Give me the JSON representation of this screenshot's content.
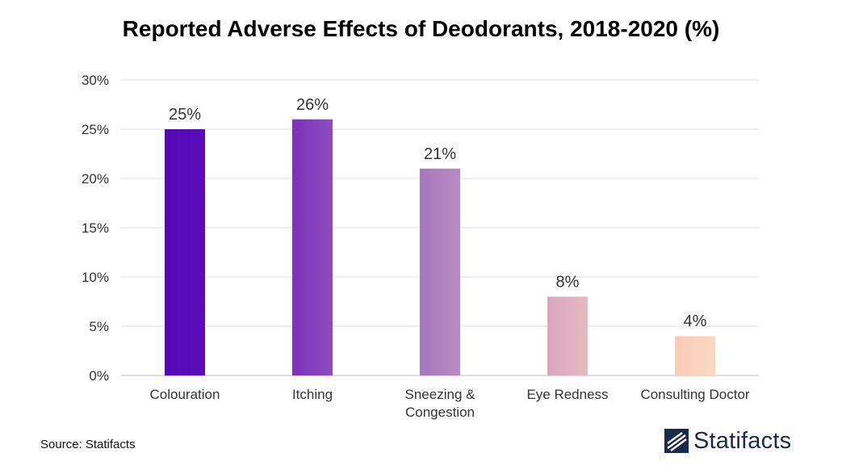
{
  "chart_data": {
    "type": "bar",
    "title": "Reported Adverse Effects of Deodorants, 2018-2020 (%)",
    "categories": [
      "Colouration",
      "Itching",
      "Sneezing & Congestion",
      "Eye Redness",
      "Consulting Doctor"
    ],
    "category_lines": [
      [
        "Colouration"
      ],
      [
        "Itching"
      ],
      [
        "Sneezing &",
        "Congestion"
      ],
      [
        "Eye Redness"
      ],
      [
        "Consulting Doctor"
      ]
    ],
    "values": [
      25,
      26,
      21,
      8,
      4
    ],
    "value_labels": [
      "25%",
      "26%",
      "21%",
      "8%",
      "4%"
    ],
    "bar_colors": [
      [
        "#5608b4",
        "#5a0dba"
      ],
      [
        "#7c32b6",
        "#8c4cc0"
      ],
      [
        "#a778bb",
        "#b88bc4"
      ],
      [
        "#d9a8bc",
        "#e4b8c4"
      ],
      [
        "#f8ccb8",
        "#fbd9c0"
      ]
    ],
    "yticks": [
      0,
      5,
      10,
      15,
      20,
      25,
      30
    ],
    "ytick_labels": [
      "0%",
      "5%",
      "10%",
      "15%",
      "20%",
      "25%",
      "30%"
    ],
    "ylim": [
      0,
      30
    ],
    "xlabel": "",
    "ylabel": "",
    "grid": true
  },
  "footer": {
    "source": "Source: Statifacts",
    "brand": "Statifacts",
    "brand_color": "#1b2a4a"
  }
}
